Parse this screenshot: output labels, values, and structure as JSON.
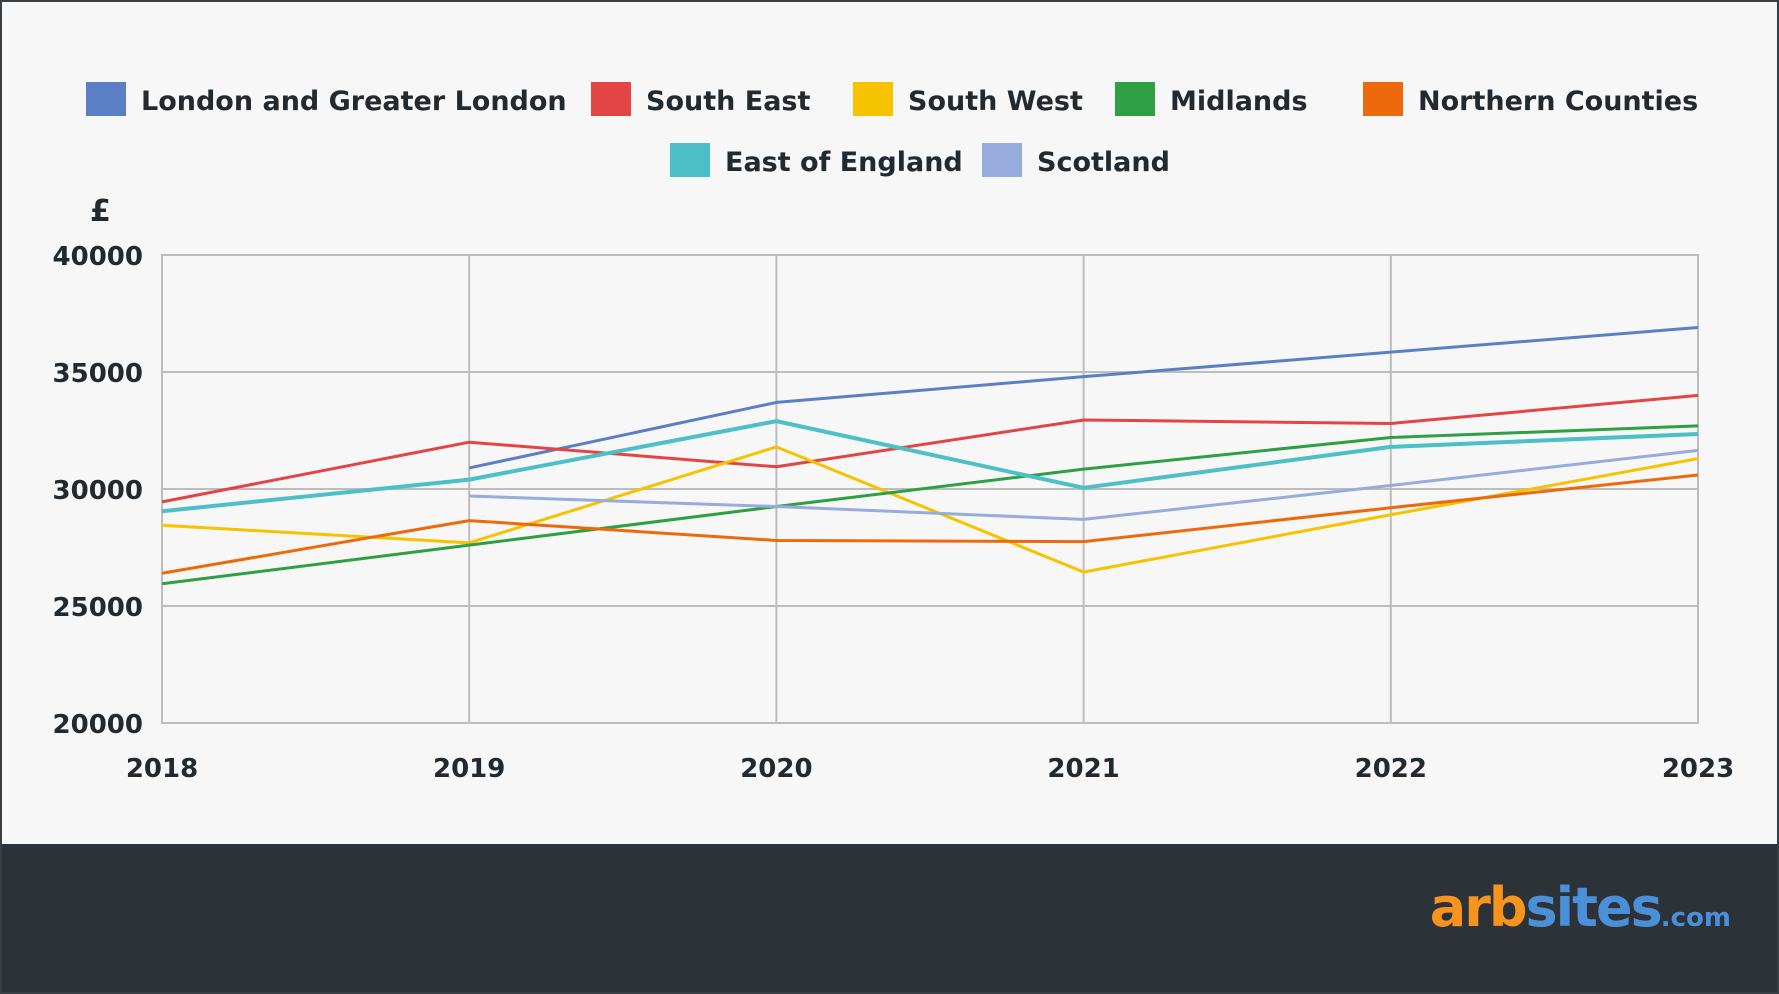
{
  "chart_data": {
    "type": "line",
    "ylabel": "£",
    "ylim": [
      20000,
      40000
    ],
    "yticks": [
      "40000",
      "35000",
      "30000",
      "25000",
      "20000"
    ],
    "x": [
      "2018",
      "2019",
      "2020",
      "2021",
      "2022",
      "2023"
    ],
    "legend_position": "top",
    "grid": true,
    "series": [
      {
        "name": "London and Greater London",
        "color": "#5b7fc4",
        "values": [
          null,
          30900,
          33700,
          34800,
          35850,
          36900
        ]
      },
      {
        "name": "South East",
        "color": "#e34444",
        "values": [
          29450,
          32000,
          30950,
          32950,
          32800,
          34000
        ]
      },
      {
        "name": "South West",
        "color": "#f7c200",
        "values": [
          28450,
          27700,
          31800,
          26450,
          28900,
          31300
        ]
      },
      {
        "name": "Midlands",
        "color": "#2ea043",
        "values": [
          25950,
          27600,
          29250,
          30850,
          32200,
          32700
        ]
      },
      {
        "name": "Northern Counties",
        "color": "#ec6a0c",
        "values": [
          26400,
          28650,
          27800,
          27750,
          29200,
          30600
        ]
      },
      {
        "name": "East of England",
        "color": "#4dbfc7",
        "values": [
          29050,
          30400,
          32900,
          30050,
          31800,
          32350
        ]
      },
      {
        "name": "Scotland",
        "color": "#97acdc",
        "values": [
          null,
          29700,
          29250,
          28700,
          30150,
          31650
        ]
      }
    ]
  },
  "footer": {
    "logo_arb": "arb",
    "logo_sites": "sites",
    "logo_dotcom": ".com"
  }
}
